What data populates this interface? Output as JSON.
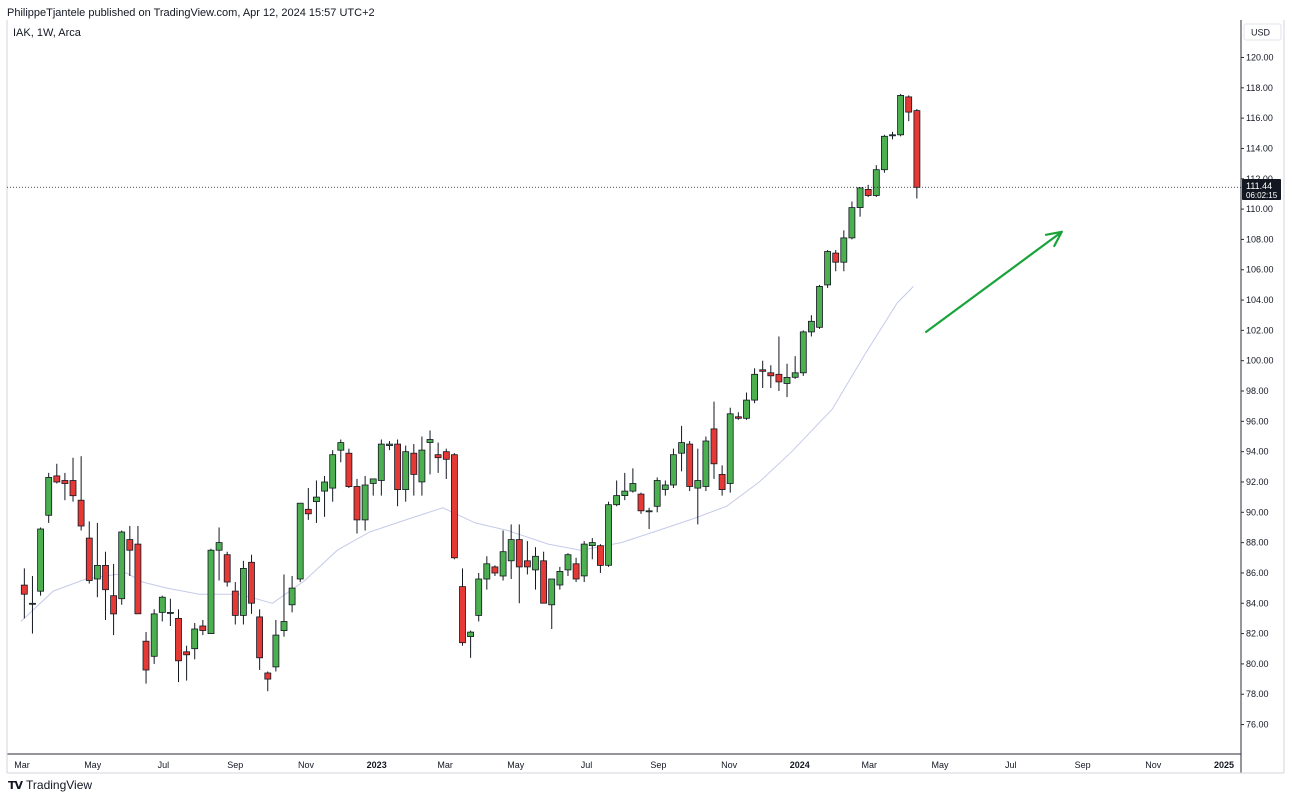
{
  "header": {
    "published": "PhilippeTjantele published on TradingView.com, Apr 12, 2024 15:57 UTC+2",
    "symbol": "IAK, 1W, Arca"
  },
  "footer": {
    "brand": "TradingView",
    "logo_icon": "tradingview-logo-icon"
  },
  "colors": {
    "up": "#4caf50",
    "down": "#e53935",
    "ma": "#c5cae9",
    "arrow": "#19a33a",
    "price_tag": "#131722"
  },
  "chart_data": {
    "type": "candlestick",
    "currency": "USD",
    "last_price": "111.44",
    "countdown": "06:02:15",
    "ylim": [
      74.0,
      122.0
    ],
    "yticks": [
      "120.00",
      "118.00",
      "116.00",
      "114.00",
      "112.00",
      "110.00",
      "108.00",
      "106.00",
      "104.00",
      "102.00",
      "100.00",
      "98.00",
      "96.00",
      "94.00",
      "92.00",
      "90.00",
      "88.00",
      "86.00",
      "84.00",
      "82.00",
      "80.00",
      "78.00",
      "76.00"
    ],
    "xticks": [
      {
        "label": "Mar",
        "date": "2022-03-01",
        "bold": false
      },
      {
        "label": "May",
        "date": "2022-05-01",
        "bold": false
      },
      {
        "label": "Jul",
        "date": "2022-07-01",
        "bold": false
      },
      {
        "label": "Sep",
        "date": "2022-09-01",
        "bold": false
      },
      {
        "label": "Nov",
        "date": "2022-11-01",
        "bold": false
      },
      {
        "label": "2023",
        "date": "2023-01-01",
        "bold": true
      },
      {
        "label": "Mar",
        "date": "2023-03-01",
        "bold": false
      },
      {
        "label": "May",
        "date": "2023-05-01",
        "bold": false
      },
      {
        "label": "Jul",
        "date": "2023-07-01",
        "bold": false
      },
      {
        "label": "Sep",
        "date": "2023-09-01",
        "bold": false
      },
      {
        "label": "Nov",
        "date": "2023-11-01",
        "bold": false
      },
      {
        "label": "2024",
        "date": "2024-01-01",
        "bold": true
      },
      {
        "label": "Mar",
        "date": "2024-03-01",
        "bold": false
      },
      {
        "label": "May",
        "date": "2024-05-01",
        "bold": false
      },
      {
        "label": "Jul",
        "date": "2024-07-01",
        "bold": false
      },
      {
        "label": "Sep",
        "date": "2024-09-01",
        "bold": false
      },
      {
        "label": "Nov",
        "date": "2024-11-01",
        "bold": false
      },
      {
        "label": "2025",
        "date": "2025-01-01",
        "bold": true
      }
    ],
    "candles": [
      {
        "date": "2022-02-28",
        "open": 85.2,
        "high": 86.3,
        "low": 83.0,
        "close": 84.6
      },
      {
        "date": "2022-03-07",
        "open": 84.0,
        "high": 85.8,
        "low": 82.0,
        "close": 84.0
      },
      {
        "date": "2022-03-14",
        "open": 84.8,
        "high": 89.0,
        "low": 84.5,
        "close": 88.9
      },
      {
        "date": "2022-03-21",
        "open": 89.8,
        "high": 92.6,
        "low": 89.3,
        "close": 92.3
      },
      {
        "date": "2022-03-28",
        "open": 92.4,
        "high": 93.2,
        "low": 91.9,
        "close": 92.0
      },
      {
        "date": "2022-04-04",
        "open": 92.1,
        "high": 92.6,
        "low": 90.8,
        "close": 91.9
      },
      {
        "date": "2022-04-11",
        "open": 92.1,
        "high": 93.6,
        "low": 90.7,
        "close": 91.1
      },
      {
        "date": "2022-04-18",
        "open": 90.8,
        "high": 93.7,
        "low": 88.8,
        "close": 89.1
      },
      {
        "date": "2022-04-25",
        "open": 88.3,
        "high": 89.4,
        "low": 85.3,
        "close": 85.5
      },
      {
        "date": "2022-05-02",
        "open": 85.6,
        "high": 89.3,
        "low": 84.4,
        "close": 86.5
      },
      {
        "date": "2022-05-09",
        "open": 86.5,
        "high": 87.4,
        "low": 82.9,
        "close": 84.9
      },
      {
        "date": "2022-05-16",
        "open": 84.5,
        "high": 86.6,
        "low": 81.9,
        "close": 83.3
      },
      {
        "date": "2022-05-23",
        "open": 84.3,
        "high": 88.8,
        "low": 83.9,
        "close": 88.7
      },
      {
        "date": "2022-05-30",
        "open": 88.2,
        "high": 89.1,
        "low": 85.8,
        "close": 87.5
      },
      {
        "date": "2022-06-06",
        "open": 87.9,
        "high": 89.1,
        "low": 83.3,
        "close": 83.3
      },
      {
        "date": "2022-06-13",
        "open": 81.5,
        "high": 82.1,
        "low": 78.7,
        "close": 79.6
      },
      {
        "date": "2022-06-20",
        "open": 80.5,
        "high": 83.6,
        "low": 80.0,
        "close": 83.3
      },
      {
        "date": "2022-06-27",
        "open": 83.4,
        "high": 84.5,
        "low": 82.8,
        "close": 84.4
      },
      {
        "date": "2022-07-04",
        "open": 83.4,
        "high": 84.3,
        "low": 82.5,
        "close": 83.4
      },
      {
        "date": "2022-07-11",
        "open": 83.0,
        "high": 83.6,
        "low": 78.8,
        "close": 80.2
      },
      {
        "date": "2022-07-18",
        "open": 80.8,
        "high": 81.2,
        "low": 78.9,
        "close": 80.6
      },
      {
        "date": "2022-07-25",
        "open": 81.0,
        "high": 82.7,
        "low": 80.3,
        "close": 82.3
      },
      {
        "date": "2022-08-01",
        "open": 82.5,
        "high": 82.9,
        "low": 81.9,
        "close": 82.2
      },
      {
        "date": "2022-08-08",
        "open": 82.0,
        "high": 87.6,
        "low": 82.0,
        "close": 87.5
      },
      {
        "date": "2022-08-15",
        "open": 87.5,
        "high": 89.0,
        "low": 85.5,
        "close": 88.0
      },
      {
        "date": "2022-08-22",
        "open": 87.2,
        "high": 87.4,
        "low": 85.1,
        "close": 85.4
      },
      {
        "date": "2022-08-29",
        "open": 84.8,
        "high": 85.4,
        "low": 82.6,
        "close": 83.2
      },
      {
        "date": "2022-09-05",
        "open": 83.2,
        "high": 86.8,
        "low": 82.6,
        "close": 86.3
      },
      {
        "date": "2022-09-12",
        "open": 86.7,
        "high": 87.2,
        "low": 83.3,
        "close": 84.0
      },
      {
        "date": "2022-09-19",
        "open": 83.1,
        "high": 83.6,
        "low": 79.6,
        "close": 80.4
      },
      {
        "date": "2022-09-26",
        "open": 79.4,
        "high": 79.5,
        "low": 78.2,
        "close": 79.0
      },
      {
        "date": "2022-10-03",
        "open": 79.8,
        "high": 82.9,
        "low": 79.5,
        "close": 81.9
      },
      {
        "date": "2022-10-10",
        "open": 82.2,
        "high": 85.9,
        "low": 81.8,
        "close": 82.8
      },
      {
        "date": "2022-10-17",
        "open": 83.9,
        "high": 85.8,
        "low": 83.4,
        "close": 85.0
      },
      {
        "date": "2022-10-24",
        "open": 85.6,
        "high": 90.6,
        "low": 85.4,
        "close": 90.6
      },
      {
        "date": "2022-10-31",
        "open": 90.2,
        "high": 91.6,
        "low": 89.5,
        "close": 89.9
      },
      {
        "date": "2022-11-07",
        "open": 90.7,
        "high": 92.1,
        "low": 89.3,
        "close": 91.0
      },
      {
        "date": "2022-11-14",
        "open": 91.4,
        "high": 92.4,
        "low": 89.7,
        "close": 92.0
      },
      {
        "date": "2022-11-21",
        "open": 91.6,
        "high": 94.1,
        "low": 90.7,
        "close": 93.8
      },
      {
        "date": "2022-11-28",
        "open": 94.1,
        "high": 94.8,
        "low": 93.3,
        "close": 94.6
      },
      {
        "date": "2022-12-05",
        "open": 93.9,
        "high": 94.2,
        "low": 91.6,
        "close": 91.7
      },
      {
        "date": "2022-12-12",
        "open": 91.7,
        "high": 92.2,
        "low": 88.6,
        "close": 89.5
      },
      {
        "date": "2022-12-19",
        "open": 89.5,
        "high": 92.4,
        "low": 88.8,
        "close": 91.8
      },
      {
        "date": "2022-12-26",
        "open": 91.9,
        "high": 92.2,
        "low": 91.1,
        "close": 92.2
      },
      {
        "date": "2023-01-02",
        "open": 92.1,
        "high": 94.8,
        "low": 91.1,
        "close": 94.5
      },
      {
        "date": "2023-01-09",
        "open": 94.4,
        "high": 94.7,
        "low": 94.1,
        "close": 94.5
      },
      {
        "date": "2023-01-16",
        "open": 94.5,
        "high": 94.8,
        "low": 90.4,
        "close": 91.5
      },
      {
        "date": "2023-01-23",
        "open": 91.5,
        "high": 94.4,
        "low": 90.7,
        "close": 94.0
      },
      {
        "date": "2023-01-30",
        "open": 93.9,
        "high": 94.5,
        "low": 91.1,
        "close": 92.5
      },
      {
        "date": "2023-02-06",
        "open": 92.0,
        "high": 95.0,
        "low": 91.1,
        "close": 94.1
      },
      {
        "date": "2023-02-13",
        "open": 94.6,
        "high": 95.4,
        "low": 92.5,
        "close": 94.8
      },
      {
        "date": "2023-02-20",
        "open": 93.8,
        "high": 94.6,
        "low": 92.6,
        "close": 93.6
      },
      {
        "date": "2023-02-27",
        "open": 94.0,
        "high": 94.2,
        "low": 92.2,
        "close": 93.5
      },
      {
        "date": "2023-03-06",
        "open": 93.8,
        "high": 93.9,
        "low": 86.9,
        "close": 87.0
      },
      {
        "date": "2023-03-13",
        "open": 85.1,
        "high": 86.3,
        "low": 81.2,
        "close": 81.4
      },
      {
        "date": "2023-03-20",
        "open": 81.8,
        "high": 82.2,
        "low": 80.4,
        "close": 82.1
      },
      {
        "date": "2023-03-27",
        "open": 83.2,
        "high": 86.0,
        "low": 82.8,
        "close": 85.6
      },
      {
        "date": "2023-04-03",
        "open": 85.6,
        "high": 87.1,
        "low": 84.9,
        "close": 86.6
      },
      {
        "date": "2023-04-10",
        "open": 86.4,
        "high": 86.5,
        "low": 85.8,
        "close": 86.0
      },
      {
        "date": "2023-04-17",
        "open": 85.8,
        "high": 88.8,
        "low": 85.5,
        "close": 87.4
      },
      {
        "date": "2023-04-24",
        "open": 86.8,
        "high": 89.2,
        "low": 85.6,
        "close": 88.2
      },
      {
        "date": "2023-05-01",
        "open": 88.2,
        "high": 89.2,
        "low": 84.0,
        "close": 86.4
      },
      {
        "date": "2023-05-08",
        "open": 86.8,
        "high": 88.1,
        "low": 85.9,
        "close": 86.4
      },
      {
        "date": "2023-05-15",
        "open": 86.2,
        "high": 87.7,
        "low": 84.9,
        "close": 87.1
      },
      {
        "date": "2023-05-22",
        "open": 86.8,
        "high": 87.4,
        "low": 84.0,
        "close": 84.0
      },
      {
        "date": "2023-05-29",
        "open": 83.9,
        "high": 85.6,
        "low": 82.3,
        "close": 85.6
      },
      {
        "date": "2023-06-05",
        "open": 85.2,
        "high": 86.4,
        "low": 84.9,
        "close": 86.1
      },
      {
        "date": "2023-06-12",
        "open": 86.2,
        "high": 87.3,
        "low": 85.8,
        "close": 87.2
      },
      {
        "date": "2023-06-19",
        "open": 86.6,
        "high": 87.0,
        "low": 85.4,
        "close": 85.6
      },
      {
        "date": "2023-06-26",
        "open": 85.8,
        "high": 88.1,
        "low": 85.4,
        "close": 87.9
      },
      {
        "date": "2023-07-03",
        "open": 87.8,
        "high": 88.3,
        "low": 86.9,
        "close": 88.0
      },
      {
        "date": "2023-07-10",
        "open": 87.8,
        "high": 87.9,
        "low": 86.0,
        "close": 86.5
      },
      {
        "date": "2023-07-17",
        "open": 86.5,
        "high": 90.7,
        "low": 86.4,
        "close": 90.5
      },
      {
        "date": "2023-07-24",
        "open": 90.5,
        "high": 92.1,
        "low": 90.4,
        "close": 91.1
      },
      {
        "date": "2023-07-31",
        "open": 91.1,
        "high": 92.6,
        "low": 90.8,
        "close": 91.4
      },
      {
        "date": "2023-08-07",
        "open": 91.4,
        "high": 92.9,
        "low": 91.3,
        "close": 91.9
      },
      {
        "date": "2023-08-14",
        "open": 91.2,
        "high": 91.3,
        "low": 89.9,
        "close": 90.1
      },
      {
        "date": "2023-08-21",
        "open": 90.1,
        "high": 90.3,
        "low": 88.9,
        "close": 90.1
      },
      {
        "date": "2023-08-28",
        "open": 90.4,
        "high": 92.3,
        "low": 90.0,
        "close": 92.1
      },
      {
        "date": "2023-09-04",
        "open": 91.5,
        "high": 92.1,
        "low": 91.1,
        "close": 91.8
      },
      {
        "date": "2023-09-11",
        "open": 91.8,
        "high": 94.2,
        "low": 91.6,
        "close": 93.8
      },
      {
        "date": "2023-09-18",
        "open": 93.9,
        "high": 95.7,
        "low": 92.7,
        "close": 94.6
      },
      {
        "date": "2023-09-25",
        "open": 94.5,
        "high": 94.7,
        "low": 91.4,
        "close": 91.7
      },
      {
        "date": "2023-10-02",
        "open": 91.6,
        "high": 94.2,
        "low": 89.2,
        "close": 92.1
      },
      {
        "date": "2023-10-09",
        "open": 91.7,
        "high": 95.0,
        "low": 91.4,
        "close": 94.7
      },
      {
        "date": "2023-10-16",
        "open": 95.5,
        "high": 97.3,
        "low": 92.2,
        "close": 93.2
      },
      {
        "date": "2023-10-23",
        "open": 92.5,
        "high": 93.1,
        "low": 91.1,
        "close": 91.5
      },
      {
        "date": "2023-10-30",
        "open": 91.9,
        "high": 96.9,
        "low": 91.3,
        "close": 96.5
      },
      {
        "date": "2023-11-06",
        "open": 96.3,
        "high": 96.6,
        "low": 96.1,
        "close": 96.2
      },
      {
        "date": "2023-11-13",
        "open": 96.2,
        "high": 97.9,
        "low": 96.1,
        "close": 97.4
      },
      {
        "date": "2023-11-20",
        "open": 97.4,
        "high": 99.5,
        "low": 97.2,
        "close": 99.1
      },
      {
        "date": "2023-11-27",
        "open": 99.4,
        "high": 100.0,
        "low": 98.2,
        "close": 99.3
      },
      {
        "date": "2023-12-04",
        "open": 99.2,
        "high": 99.7,
        "low": 98.2,
        "close": 99.0
      },
      {
        "date": "2023-12-11",
        "open": 99.1,
        "high": 101.6,
        "low": 98.0,
        "close": 98.6
      },
      {
        "date": "2023-12-18",
        "open": 98.5,
        "high": 99.8,
        "low": 97.6,
        "close": 98.9
      },
      {
        "date": "2023-12-25",
        "open": 98.9,
        "high": 100.3,
        "low": 98.8,
        "close": 99.2
      },
      {
        "date": "2024-01-01",
        "open": 99.2,
        "high": 102.0,
        "low": 99.0,
        "close": 101.9
      },
      {
        "date": "2024-01-08",
        "open": 101.9,
        "high": 103.0,
        "low": 101.6,
        "close": 102.6
      },
      {
        "date": "2024-01-15",
        "open": 102.2,
        "high": 105.0,
        "low": 102.1,
        "close": 104.9
      },
      {
        "date": "2024-01-22",
        "open": 105.0,
        "high": 107.3,
        "low": 104.8,
        "close": 107.2
      },
      {
        "date": "2024-01-29",
        "open": 107.1,
        "high": 107.3,
        "low": 105.9,
        "close": 106.5
      },
      {
        "date": "2024-02-05",
        "open": 106.5,
        "high": 108.6,
        "low": 105.9,
        "close": 108.1
      },
      {
        "date": "2024-02-12",
        "open": 108.1,
        "high": 110.5,
        "low": 108.0,
        "close": 110.1
      },
      {
        "date": "2024-02-19",
        "open": 110.1,
        "high": 111.4,
        "low": 109.5,
        "close": 111.4
      },
      {
        "date": "2024-02-26",
        "open": 111.3,
        "high": 111.6,
        "low": 110.8,
        "close": 110.9
      },
      {
        "date": "2024-03-04",
        "open": 110.9,
        "high": 112.9,
        "low": 110.8,
        "close": 112.6
      },
      {
        "date": "2024-03-11",
        "open": 112.6,
        "high": 114.9,
        "low": 112.4,
        "close": 114.8
      },
      {
        "date": "2024-03-18",
        "open": 114.9,
        "high": 115.1,
        "low": 114.6,
        "close": 114.9
      },
      {
        "date": "2024-03-25",
        "open": 114.9,
        "high": 117.6,
        "low": 114.8,
        "close": 117.5
      },
      {
        "date": "2024-04-01",
        "open": 117.4,
        "high": 117.5,
        "low": 115.8,
        "close": 116.4
      },
      {
        "date": "2024-04-08",
        "open": 116.5,
        "high": 116.6,
        "low": 110.7,
        "close": 111.44
      }
    ],
    "moving_average": [
      {
        "date": "2022-02-28",
        "value": 82.8
      },
      {
        "date": "2022-03-28",
        "value": 84.8
      },
      {
        "date": "2022-04-25",
        "value": 85.6
      },
      {
        "date": "2022-05-30",
        "value": 86.0
      },
      {
        "date": "2022-06-13",
        "value": 85.4
      },
      {
        "date": "2022-07-04",
        "value": 85.0
      },
      {
        "date": "2022-08-01",
        "value": 84.6
      },
      {
        "date": "2022-09-05",
        "value": 84.6
      },
      {
        "date": "2022-10-03",
        "value": 84.0
      },
      {
        "date": "2022-10-31",
        "value": 85.5
      },
      {
        "date": "2022-11-28",
        "value": 87.5
      },
      {
        "date": "2022-12-26",
        "value": 88.7
      },
      {
        "date": "2023-01-30",
        "value": 89.6
      },
      {
        "date": "2023-02-27",
        "value": 90.3
      },
      {
        "date": "2023-03-27",
        "value": 89.3
      },
      {
        "date": "2023-04-24",
        "value": 88.8
      },
      {
        "date": "2023-05-29",
        "value": 87.9
      },
      {
        "date": "2023-06-26",
        "value": 87.5
      },
      {
        "date": "2023-07-31",
        "value": 88.0
      },
      {
        "date": "2023-08-28",
        "value": 88.7
      },
      {
        "date": "2023-10-02",
        "value": 89.6
      },
      {
        "date": "2023-10-30",
        "value": 90.4
      },
      {
        "date": "2023-11-27",
        "value": 92.0
      },
      {
        "date": "2023-12-25",
        "value": 94.0
      },
      {
        "date": "2024-01-29",
        "value": 96.8
      },
      {
        "date": "2024-02-26",
        "value": 100.4
      },
      {
        "date": "2024-03-25",
        "value": 103.8
      },
      {
        "date": "2024-04-08",
        "value": 104.9
      }
    ],
    "annotation_arrow": {
      "from": {
        "date": "2024-04-19",
        "value": 101.9
      },
      "to": {
        "date": "2024-08-14",
        "value": 108.5
      }
    }
  }
}
